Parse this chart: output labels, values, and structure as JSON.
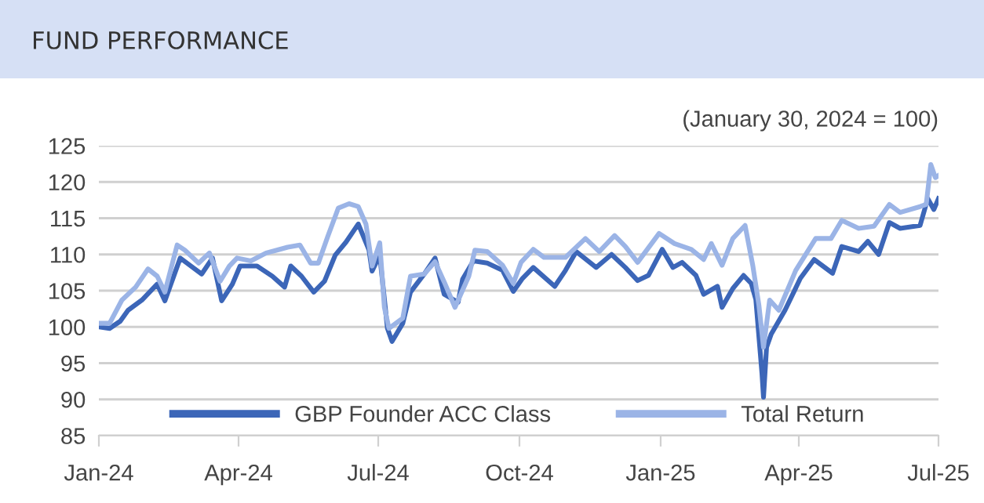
{
  "chart_data": {
    "type": "line",
    "title": "FUND PERFORMANCE",
    "annotations": [
      "(January 30, 2024 = 100)"
    ],
    "xlim": [
      "2024-01-01",
      "2025-07-01"
    ],
    "xticks": [
      {
        "value": "2024-01-01",
        "label": "Jan-24"
      },
      {
        "value": "2024-04-01",
        "label": "Apr-24"
      },
      {
        "value": "2024-07-01",
        "label": "Jul-24"
      },
      {
        "value": "2024-10-01",
        "label": "Oct-24"
      },
      {
        "value": "2025-01-01",
        "label": "Jan-25"
      },
      {
        "value": "2025-04-01",
        "label": "Apr-25"
      },
      {
        "value": "2025-07-01",
        "label": "Jul-25"
      }
    ],
    "ylim": [
      85,
      125
    ],
    "yticks": [
      85,
      90,
      95,
      100,
      105,
      110,
      115,
      120,
      125
    ],
    "grid": "y",
    "legend": "bottom",
    "marker": "none",
    "line_style": "solid",
    "series": [
      {
        "name": "GBP Founder ACC Class",
        "color": "#3c66b8",
        "x": [
          "2024-01-01",
          "2024-01-08",
          "2024-01-15",
          "2024-01-20",
          "2024-01-29",
          "2024-02-08",
          "2024-02-13",
          "2024-02-23",
          "2024-03-08",
          "2024-03-15",
          "2024-03-21",
          "2024-03-28",
          "2024-04-02",
          "2024-04-13",
          "2024-04-23",
          "2024-05-01",
          "2024-05-05",
          "2024-05-12",
          "2024-05-20",
          "2024-05-27",
          "2024-06-03",
          "2024-06-10",
          "2024-06-18",
          "2024-06-25",
          "2024-06-27",
          "2024-07-02",
          "2024-07-07",
          "2024-07-10",
          "2024-07-17",
          "2024-07-22",
          "2024-07-31",
          "2024-08-07",
          "2024-08-13",
          "2024-08-22",
          "2024-08-25",
          "2024-09-01",
          "2024-09-10",
          "2024-09-20",
          "2024-09-27",
          "2024-10-03",
          "2024-10-10",
          "2024-10-24",
          "2024-10-31",
          "2024-11-07",
          "2024-11-20",
          "2024-11-30",
          "2024-12-09",
          "2024-12-17",
          "2024-12-24",
          "2025-01-02",
          "2025-01-09",
          "2025-01-15",
          "2025-01-24",
          "2025-01-29",
          "2025-02-07",
          "2025-02-10",
          "2025-02-17",
          "2025-02-24",
          "2025-03-01",
          "2025-03-04",
          "2025-03-08",
          "2025-03-09",
          "2025-03-11",
          "2025-03-14",
          "2025-03-23",
          "2025-04-02",
          "2025-04-11",
          "2025-04-23",
          "2025-04-29",
          "2025-05-10",
          "2025-05-16",
          "2025-05-23",
          "2025-05-30",
          "2025-06-06",
          "2025-06-19",
          "2025-06-24",
          "2025-06-28",
          "2025-07-01"
        ],
        "values": [
          100,
          99.8,
          100.8,
          102.3,
          103.7,
          105.9,
          103.6,
          109.5,
          107.3,
          109.5,
          103.6,
          105.9,
          108.4,
          108.4,
          107,
          105.5,
          108.4,
          107,
          104.8,
          106.3,
          109.9,
          111.7,
          114.2,
          110.6,
          107.7,
          109.9,
          99.8,
          98,
          100.5,
          104.8,
          107.3,
          109.5,
          104.5,
          103.4,
          106.6,
          109.1,
          108.8,
          107.8,
          104.9,
          106.7,
          108.2,
          105.6,
          107.8,
          110.4,
          108.2,
          110,
          108.2,
          106.4,
          107.1,
          110.7,
          108.2,
          108.9,
          107.1,
          104.5,
          105.6,
          102.7,
          105.3,
          107.1,
          106,
          103.8,
          93.6,
          90.3,
          97.2,
          99,
          102.3,
          106.7,
          109.3,
          107.4,
          111.1,
          110.4,
          111.8,
          110,
          114.4,
          113.6,
          114,
          117.7,
          116.2,
          117.7
        ]
      },
      {
        "name": "Total Return",
        "color": "#9bb4e6",
        "x": [
          "2024-01-01",
          "2024-01-08",
          "2024-01-16",
          "2024-01-25",
          "2024-02-02",
          "2024-02-08",
          "2024-02-13",
          "2024-02-21",
          "2024-02-26",
          "2024-03-06",
          "2024-03-13",
          "2024-03-20",
          "2024-03-26",
          "2024-03-31",
          "2024-04-09",
          "2024-04-19",
          "2024-04-26",
          "2024-05-03",
          "2024-05-11",
          "2024-05-18",
          "2024-05-23",
          "2024-05-29",
          "2024-06-05",
          "2024-06-12",
          "2024-06-18",
          "2024-06-23",
          "2024-06-27",
          "2024-07-02",
          "2024-07-05",
          "2024-07-08",
          "2024-07-17",
          "2024-07-22",
          "2024-07-31",
          "2024-08-07",
          "2024-08-13",
          "2024-08-20",
          "2024-08-29",
          "2024-09-02",
          "2024-09-10",
          "2024-09-20",
          "2024-09-27",
          "2024-10-02",
          "2024-10-10",
          "2024-10-17",
          "2024-10-31",
          "2024-11-13",
          "2024-11-22",
          "2024-12-02",
          "2024-12-09",
          "2024-12-17",
          "2024-12-31",
          "2025-01-10",
          "2025-01-21",
          "2025-01-29",
          "2025-02-03",
          "2025-02-10",
          "2025-02-17",
          "2025-02-25",
          "2025-03-02",
          "2025-03-06",
          "2025-03-09",
          "2025-03-13",
          "2025-03-19",
          "2025-03-30",
          "2025-04-12",
          "2025-04-22",
          "2025-04-29",
          "2025-05-10",
          "2025-05-20",
          "2025-05-30",
          "2025-06-06",
          "2025-06-19",
          "2025-06-23",
          "2025-06-26",
          "2025-06-29",
          "2025-07-01"
        ],
        "values": [
          100.5,
          100.5,
          103.7,
          105.5,
          108,
          107,
          104.8,
          111.3,
          110.6,
          108.8,
          110.2,
          106.3,
          108.4,
          109.5,
          109.1,
          110.2,
          110.6,
          111,
          111.3,
          108.8,
          108.8,
          112.4,
          116.4,
          117,
          116.6,
          114.2,
          108.4,
          111.6,
          102.7,
          99.8,
          101.2,
          107,
          107.3,
          109,
          106.2,
          102.7,
          107,
          110.6,
          110.4,
          108.5,
          106,
          108.9,
          110.7,
          109.6,
          109.6,
          112.2,
          110.4,
          112.6,
          111.1,
          108.9,
          112.9,
          111.5,
          110.7,
          109.3,
          111.5,
          108.5,
          112.2,
          114,
          108.5,
          103,
          97.2,
          103.7,
          102.3,
          107.8,
          112.2,
          112.2,
          114.7,
          113.6,
          113.9,
          116.9,
          115.8,
          116.6,
          116.9,
          122.4,
          120.6,
          120.9
        ]
      }
    ]
  }
}
